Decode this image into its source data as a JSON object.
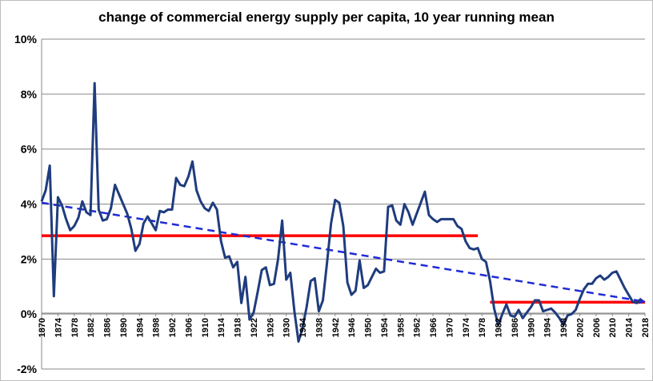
{
  "chart_data": {
    "type": "line",
    "title": "change of commercial energy supply per capita, 10 year running mean",
    "xlabel": "",
    "ylabel": "",
    "xlim": [
      1870,
      2018
    ],
    "ylim": [
      -2,
      10
    ],
    "y_tick_labels": [
      "-2%",
      "0%",
      "2%",
      "4%",
      "6%",
      "8%",
      "10%"
    ],
    "y_tick_values": [
      -2,
      0,
      2,
      4,
      6,
      8,
      10
    ],
    "x_tick_labels": [
      "1870",
      "1874",
      "1878",
      "1882",
      "1886",
      "1890",
      "1894",
      "1898",
      "1902",
      "1906",
      "1910",
      "1914",
      "1918",
      "1922",
      "1926",
      "1930",
      "1934",
      "1938",
      "1942",
      "1946",
      "1950",
      "1954",
      "1958",
      "1962",
      "1966",
      "1970",
      "1974",
      "1978",
      "1982",
      "1986",
      "1990",
      "1994",
      "1998",
      "2002",
      "2006",
      "2010",
      "2014",
      "2018"
    ],
    "grid": "horizontal",
    "series": [
      {
        "color": "#1f3c7e",
        "style": "solid",
        "points": [
          [
            1870,
            4.1
          ],
          [
            1871,
            4.5
          ],
          [
            1872,
            5.4
          ],
          [
            1873,
            0.65
          ],
          [
            1874,
            4.25
          ],
          [
            1875,
            3.95
          ],
          [
            1876,
            3.45
          ],
          [
            1877,
            3.05
          ],
          [
            1878,
            3.2
          ],
          [
            1879,
            3.5
          ],
          [
            1880,
            4.1
          ],
          [
            1881,
            3.7
          ],
          [
            1882,
            3.6
          ],
          [
            1883,
            8.4
          ],
          [
            1884,
            3.8
          ],
          [
            1885,
            3.4
          ],
          [
            1886,
            3.45
          ],
          [
            1887,
            3.85
          ],
          [
            1888,
            4.7
          ],
          [
            1889,
            4.35
          ],
          [
            1890,
            4.0
          ],
          [
            1891,
            3.65
          ],
          [
            1892,
            3.1
          ],
          [
            1893,
            2.3
          ],
          [
            1894,
            2.55
          ],
          [
            1895,
            3.3
          ],
          [
            1896,
            3.55
          ],
          [
            1897,
            3.3
          ],
          [
            1898,
            3.05
          ],
          [
            1899,
            3.75
          ],
          [
            1900,
            3.7
          ],
          [
            1901,
            3.8
          ],
          [
            1902,
            3.8
          ],
          [
            1903,
            4.95
          ],
          [
            1904,
            4.7
          ],
          [
            1905,
            4.65
          ],
          [
            1906,
            5.0
          ],
          [
            1907,
            5.55
          ],
          [
            1908,
            4.5
          ],
          [
            1909,
            4.1
          ],
          [
            1910,
            3.85
          ],
          [
            1911,
            3.75
          ],
          [
            1912,
            4.05
          ],
          [
            1913,
            3.8
          ],
          [
            1914,
            2.65
          ],
          [
            1915,
            2.05
          ],
          [
            1916,
            2.1
          ],
          [
            1917,
            1.7
          ],
          [
            1918,
            1.9
          ],
          [
            1919,
            0.4
          ],
          [
            1920,
            1.35
          ],
          [
            1921,
            -0.2
          ],
          [
            1922,
            0.05
          ],
          [
            1923,
            0.8
          ],
          [
            1924,
            1.6
          ],
          [
            1925,
            1.7
          ],
          [
            1926,
            1.05
          ],
          [
            1927,
            1.1
          ],
          [
            1928,
            2.0
          ],
          [
            1929,
            3.4
          ],
          [
            1930,
            1.25
          ],
          [
            1931,
            1.5
          ],
          [
            1932,
            0.1
          ],
          [
            1933,
            -1.0
          ],
          [
            1934,
            -0.5
          ],
          [
            1935,
            0.25
          ],
          [
            1936,
            1.2
          ],
          [
            1937,
            1.3
          ],
          [
            1938,
            0.1
          ],
          [
            1939,
            0.5
          ],
          [
            1940,
            1.85
          ],
          [
            1941,
            3.3
          ],
          [
            1942,
            4.15
          ],
          [
            1943,
            4.05
          ],
          [
            1944,
            3.2
          ],
          [
            1945,
            1.15
          ],
          [
            1946,
            0.7
          ],
          [
            1947,
            0.85
          ],
          [
            1948,
            1.95
          ],
          [
            1949,
            0.95
          ],
          [
            1950,
            1.05
          ],
          [
            1951,
            1.35
          ],
          [
            1952,
            1.65
          ],
          [
            1953,
            1.5
          ],
          [
            1954,
            1.55
          ],
          [
            1955,
            3.9
          ],
          [
            1956,
            3.95
          ],
          [
            1957,
            3.4
          ],
          [
            1958,
            3.25
          ],
          [
            1959,
            4.0
          ],
          [
            1960,
            3.7
          ],
          [
            1961,
            3.25
          ],
          [
            1962,
            3.65
          ],
          [
            1963,
            4.05
          ],
          [
            1964,
            4.45
          ],
          [
            1965,
            3.6
          ],
          [
            1966,
            3.45
          ],
          [
            1967,
            3.35
          ],
          [
            1968,
            3.45
          ],
          [
            1969,
            3.45
          ],
          [
            1970,
            3.45
          ],
          [
            1971,
            3.45
          ],
          [
            1972,
            3.2
          ],
          [
            1973,
            3.1
          ],
          [
            1974,
            2.65
          ],
          [
            1975,
            2.4
          ],
          [
            1976,
            2.35
          ],
          [
            1977,
            2.4
          ],
          [
            1978,
            2.0
          ],
          [
            1979,
            1.9
          ],
          [
            1980,
            1.2
          ],
          [
            1981,
            0.2
          ],
          [
            1982,
            -0.4
          ],
          [
            1983,
            0.0
          ],
          [
            1984,
            0.35
          ],
          [
            1985,
            -0.05
          ],
          [
            1986,
            -0.1
          ],
          [
            1987,
            0.15
          ],
          [
            1988,
            -0.15
          ],
          [
            1989,
            0.05
          ],
          [
            1990,
            0.25
          ],
          [
            1991,
            0.5
          ],
          [
            1992,
            0.5
          ],
          [
            1993,
            0.1
          ],
          [
            1994,
            0.15
          ],
          [
            1995,
            0.2
          ],
          [
            1996,
            0.05
          ],
          [
            1997,
            -0.15
          ],
          [
            1998,
            -0.4
          ],
          [
            1999,
            -0.05
          ],
          [
            2000,
            0.0
          ],
          [
            2001,
            0.15
          ],
          [
            2002,
            0.55
          ],
          [
            2003,
            0.9
          ],
          [
            2004,
            1.1
          ],
          [
            2005,
            1.1
          ],
          [
            2006,
            1.3
          ],
          [
            2007,
            1.4
          ],
          [
            2008,
            1.25
          ],
          [
            2009,
            1.35
          ],
          [
            2010,
            1.5
          ],
          [
            2011,
            1.55
          ],
          [
            2012,
            1.25
          ],
          [
            2013,
            0.95
          ],
          [
            2014,
            0.7
          ],
          [
            2015,
            0.45
          ],
          [
            2016,
            0.4
          ],
          [
            2017,
            0.55
          ]
        ]
      }
    ],
    "reference_lines": [
      {
        "color": "#ff0000",
        "style": "solid",
        "from": [
          1870,
          2.85
        ],
        "to": [
          1977,
          2.85
        ]
      },
      {
        "color": "#ff0000",
        "style": "solid",
        "from": [
          1980,
          0.43
        ],
        "to": [
          2018,
          0.43
        ]
      },
      {
        "color": "#1f2bd6",
        "style": "dashed-arrow",
        "from": [
          1870,
          4.05
        ],
        "to": [
          2018,
          0.45
        ]
      }
    ]
  }
}
